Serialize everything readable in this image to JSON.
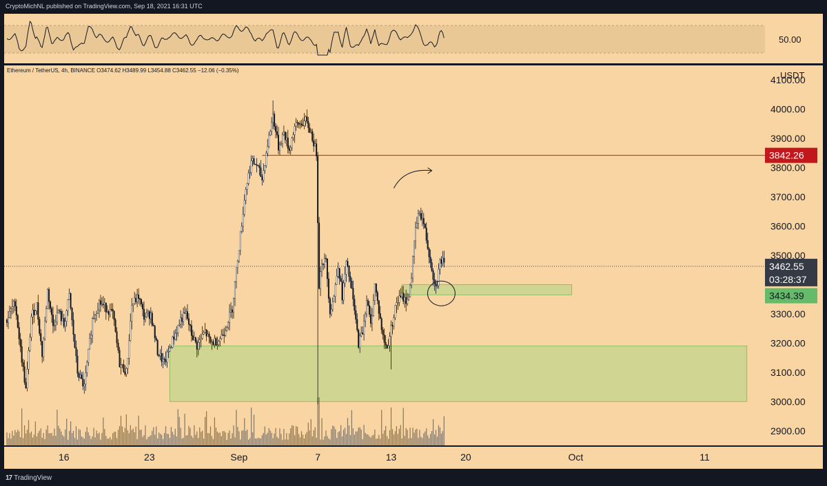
{
  "header": {
    "publisher": "CryptoMichNL published on TradingView.com, Sep 18, 2021 16:31 UTC"
  },
  "footer": {
    "brand": "TradingView",
    "logo_mark": "17"
  },
  "colors": {
    "background": "#f8d5a2",
    "up_candle": "#ffffff",
    "down_candle": "#131722",
    "resistance_line": "#c2181b",
    "zone_fill": "#c3d68c",
    "zone_border": "#8fbf60",
    "current_price_label": "#363a45",
    "support_label": "#66bb6a",
    "resistance_label": "#c2181b",
    "dark": "#131722"
  },
  "ohlc": "Ethereum / TetherUS, 4h, BINANCE  O3474.62  H3489.99  L3454.88  C3462.55  −12.06 (−0.35%)",
  "rsi": {
    "label": "50.00"
  },
  "price_axis": {
    "unit": "USDT",
    "ticks": [
      "4100.00",
      "4000.00",
      "3900.00",
      "3800.00",
      "3700.00",
      "3600.00",
      "3500.00",
      "3300.00",
      "3200.00",
      "3100.00",
      "3000.00",
      "2900.00"
    ],
    "current_price": "3462.55",
    "countdown": "03:28:37",
    "resistance_label": "3842.26",
    "support_label": "3434.39"
  },
  "time_axis": {
    "ticks": [
      "16",
      "23",
      "Sep",
      "7",
      "13",
      "20",
      "Oct",
      "11"
    ]
  },
  "chart_data": {
    "type": "candlestick",
    "symbol": "Ethereum / TetherUS",
    "timeframe": "4h",
    "exchange": "BINANCE",
    "ylim": [
      2850,
      4150
    ],
    "yunit": "USDT",
    "last": {
      "open": 3474.62,
      "high": 3489.99,
      "low": 3454.88,
      "close": 3462.55,
      "change": -12.06,
      "change_pct": -0.35
    },
    "anchors": [
      {
        "t": 0,
        "p": 3280
      },
      {
        "t": 6,
        "p": 3340
      },
      {
        "t": 10,
        "p": 3180
      },
      {
        "t": 14,
        "p": 3040
      },
      {
        "t": 18,
        "p": 3290
      },
      {
        "t": 22,
        "p": 3330
      },
      {
        "t": 26,
        "p": 3160
      },
      {
        "t": 30,
        "p": 3380
      },
      {
        "t": 34,
        "p": 3260
      },
      {
        "t": 38,
        "p": 3310
      },
      {
        "t": 42,
        "p": 3260
      },
      {
        "t": 46,
        "p": 3360
      },
      {
        "t": 52,
        "p": 3100
      },
      {
        "t": 57,
        "p": 3050
      },
      {
        "t": 63,
        "p": 3280
      },
      {
        "t": 68,
        "p": 3340
      },
      {
        "t": 73,
        "p": 3320
      },
      {
        "t": 78,
        "p": 3300
      },
      {
        "t": 83,
        "p": 3130
      },
      {
        "t": 88,
        "p": 3100
      },
      {
        "t": 92,
        "p": 3330
      },
      {
        "t": 97,
        "p": 3360
      },
      {
        "t": 101,
        "p": 3290
      },
      {
        "t": 106,
        "p": 3300
      },
      {
        "t": 111,
        "p": 3170
      },
      {
        "t": 116,
        "p": 3130
      },
      {
        "t": 122,
        "p": 3210
      },
      {
        "t": 128,
        "p": 3280
      },
      {
        "t": 132,
        "p": 3300
      },
      {
        "t": 136,
        "p": 3230
      },
      {
        "t": 140,
        "p": 3190
      },
      {
        "t": 146,
        "p": 3240
      },
      {
        "t": 150,
        "p": 3200
      },
      {
        "t": 156,
        "p": 3210
      },
      {
        "t": 160,
        "p": 3240
      },
      {
        "t": 166,
        "p": 3320
      },
      {
        "t": 170,
        "p": 3490
      },
      {
        "t": 176,
        "p": 3730
      },
      {
        "t": 180,
        "p": 3820
      },
      {
        "t": 184,
        "p": 3810
      },
      {
        "t": 188,
        "p": 3760
      },
      {
        "t": 192,
        "p": 3880
      },
      {
        "t": 196,
        "p": 3980
      },
      {
        "t": 200,
        "p": 3870
      },
      {
        "t": 204,
        "p": 3920
      },
      {
        "t": 208,
        "p": 3860
      },
      {
        "t": 212,
        "p": 3940
      },
      {
        "t": 216,
        "p": 3950
      },
      {
        "t": 220,
        "p": 3960
      },
      {
        "t": 224,
        "p": 3920
      },
      {
        "t": 228,
        "p": 3850
      },
      {
        "t": 230,
        "p": 3400
      },
      {
        "t": 232,
        "p": 3480
      },
      {
        "t": 235,
        "p": 3480
      },
      {
        "t": 238,
        "p": 3310
      },
      {
        "t": 241,
        "p": 3360
      },
      {
        "t": 244,
        "p": 3470
      },
      {
        "t": 247,
        "p": 3360
      },
      {
        "t": 250,
        "p": 3470
      },
      {
        "t": 253,
        "p": 3410
      },
      {
        "t": 256,
        "p": 3310
      },
      {
        "t": 259,
        "p": 3200
      },
      {
        "t": 262,
        "p": 3240
      },
      {
        "t": 265,
        "p": 3350
      },
      {
        "t": 268,
        "p": 3260
      },
      {
        "t": 271,
        "p": 3400
      },
      {
        "t": 274,
        "p": 3310
      },
      {
        "t": 277,
        "p": 3220
      },
      {
        "t": 280,
        "p": 3180
      },
      {
        "t": 283,
        "p": 3250
      },
      {
        "t": 287,
        "p": 3340
      },
      {
        "t": 291,
        "p": 3360
      },
      {
        "t": 295,
        "p": 3340
      },
      {
        "t": 298,
        "p": 3430
      },
      {
        "t": 301,
        "p": 3590
      },
      {
        "t": 304,
        "p": 3650
      },
      {
        "t": 307,
        "p": 3610
      },
      {
        "t": 310,
        "p": 3530
      },
      {
        "t": 313,
        "p": 3460
      },
      {
        "t": 315,
        "p": 3400
      },
      {
        "t": 317,
        "p": 3410
      },
      {
        "t": 319,
        "p": 3480
      },
      {
        "t": 321,
        "p": 3480
      },
      {
        "t": 322,
        "p": 3462.55
      }
    ],
    "levels": [
      {
        "name": "resistance",
        "price": 3842.26,
        "color": "#c2181b"
      }
    ],
    "zones": [
      {
        "from_price": 3365,
        "to_price": 3400,
        "t_start": 291,
        "t_end": 416
      },
      {
        "from_price": 3000,
        "to_price": 3190,
        "t_start": 120,
        "t_end": 545
      }
    ],
    "rsi_band": [
      30,
      70
    ],
    "volume_max": 1
  }
}
